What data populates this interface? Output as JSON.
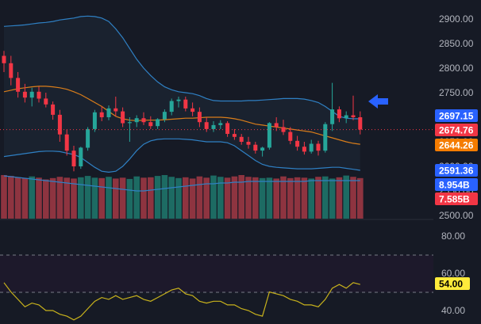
{
  "chart_data": {
    "type": "candlestick",
    "price_axis": {
      "range": [
        2500,
        2920
      ],
      "ticks": [
        "2900.00",
        "2850.00",
        "2800.00",
        "2750.00",
        "2700.00",
        "2650.00",
        "2600.00",
        "2550.00",
        "2500.00"
      ]
    },
    "rsi_axis": {
      "range": [
        36,
        82
      ],
      "ticks": [
        "80.00",
        "60.00",
        "40.00"
      ],
      "bands": [
        70,
        50
      ]
    },
    "candles": [
      [
        2825,
        2835,
        2792,
        2810
      ],
      [
        2810,
        2825,
        2765,
        2780
      ],
      [
        2780,
        2792,
        2740,
        2752
      ],
      [
        2752,
        2768,
        2730,
        2740
      ],
      [
        2740,
        2760,
        2722,
        2752
      ],
      [
        2752,
        2762,
        2730,
        2738
      ],
      [
        2738,
        2750,
        2720,
        2726
      ],
      [
        2726,
        2732,
        2695,
        2705
      ],
      [
        2705,
        2715,
        2650,
        2665
      ],
      [
        2665,
        2675,
        2622,
        2632
      ],
      [
        2632,
        2642,
        2590,
        2600
      ],
      [
        2600,
        2640,
        2595,
        2638
      ],
      [
        2638,
        2680,
        2632,
        2676
      ],
      [
        2676,
        2715,
        2670,
        2710
      ],
      [
        2710,
        2722,
        2692,
        2700
      ],
      [
        2700,
        2724,
        2694,
        2718
      ],
      [
        2718,
        2742,
        2702,
        2712
      ],
      [
        2712,
        2720,
        2680,
        2688
      ],
      [
        2688,
        2700,
        2650,
        2690
      ],
      [
        2690,
        2704,
        2680,
        2698
      ],
      [
        2698,
        2710,
        2684,
        2690
      ],
      [
        2690,
        2702,
        2676,
        2682
      ],
      [
        2682,
        2698,
        2676,
        2696
      ],
      [
        2696,
        2716,
        2690,
        2711
      ],
      [
        2711,
        2738,
        2704,
        2733
      ],
      [
        2733,
        2742,
        2720,
        2736
      ],
      [
        2736,
        2742,
        2712,
        2718
      ],
      [
        2718,
        2730,
        2702,
        2711
      ],
      [
        2711,
        2720,
        2680,
        2690
      ],
      [
        2690,
        2700,
        2670,
        2676
      ],
      [
        2676,
        2692,
        2670,
        2684
      ],
      [
        2684,
        2694,
        2676,
        2688
      ],
      [
        2688,
        2692,
        2660,
        2666
      ],
      [
        2666,
        2676,
        2654,
        2660
      ],
      [
        2660,
        2666,
        2644,
        2650
      ],
      [
        2650,
        2660,
        2636,
        2644
      ],
      [
        2644,
        2650,
        2626,
        2632
      ],
      [
        2632,
        2640,
        2620,
        2638
      ],
      [
        2638,
        2690,
        2634,
        2688
      ],
      [
        2688,
        2700,
        2672,
        2680
      ],
      [
        2680,
        2695,
        2664,
        2670
      ],
      [
        2670,
        2680,
        2645,
        2652
      ],
      [
        2652,
        2662,
        2632,
        2640
      ],
      [
        2640,
        2650,
        2624,
        2630
      ],
      [
        2630,
        2654,
        2626,
        2646
      ],
      [
        2646,
        2652,
        2622,
        2632
      ],
      [
        2632,
        2690,
        2628,
        2686
      ],
      [
        2686,
        2770,
        2672,
        2716
      ],
      [
        2716,
        2722,
        2690,
        2698
      ],
      [
        2698,
        2712,
        2688,
        2704
      ],
      [
        2704,
        2744,
        2694,
        2700
      ],
      [
        2700,
        2712,
        2665,
        2675
      ]
    ],
    "volume_colors": "colored by candle direction",
    "bollinger_upper": [
      2885,
      2886,
      2887,
      2888,
      2890,
      2892,
      2893,
      2895,
      2898,
      2900,
      2902,
      2905,
      2906,
      2905,
      2902,
      2895,
      2880,
      2862,
      2840,
      2818,
      2800,
      2785,
      2772,
      2762,
      2756,
      2752,
      2750,
      2748,
      2744,
      2738,
      2734,
      2733,
      2733,
      2733,
      2733,
      2734,
      2734,
      2735,
      2736,
      2737,
      2738,
      2738,
      2738,
      2737,
      2734,
      2730,
      2722,
      2712,
      2702,
      2698,
      2697,
      2697
    ],
    "bollinger_middle": [
      2752,
      2755,
      2758,
      2760,
      2762,
      2763,
      2763,
      2762,
      2760,
      2757,
      2752,
      2746,
      2738,
      2730,
      2722,
      2712,
      2702,
      2697,
      2694,
      2693,
      2694,
      2694,
      2694,
      2695,
      2696,
      2697,
      2698,
      2698,
      2699,
      2700,
      2700,
      2700,
      2699,
      2697,
      2694,
      2690,
      2686,
      2684,
      2682,
      2680,
      2678,
      2676,
      2674,
      2672,
      2670,
      2666,
      2662,
      2658,
      2654,
      2650,
      2647,
      2645
    ],
    "bollinger_lower": [
      2620,
      2622,
      2624,
      2626,
      2628,
      2630,
      2631,
      2631,
      2630,
      2627,
      2624,
      2618,
      2608,
      2598,
      2590,
      2588,
      2590,
      2600,
      2615,
      2632,
      2645,
      2652,
      2655,
      2656,
      2656,
      2656,
      2655,
      2654,
      2652,
      2650,
      2650,
      2650,
      2648,
      2642,
      2632,
      2622,
      2612,
      2604,
      2600,
      2598,
      2597,
      2596,
      2595,
      2595,
      2595,
      2596,
      2597,
      2598,
      2598,
      2596,
      2594,
      2592
    ],
    "volume_ma": [
      0.05,
      0.06,
      0.07,
      0.08,
      0.09,
      0.1,
      0.11,
      0.12,
      0.14,
      0.16,
      0.18,
      0.2,
      0.22,
      0.24,
      0.26,
      0.28,
      0.3,
      0.32,
      0.34,
      0.35,
      0.36,
      0.38,
      0.4,
      0.42,
      0.44,
      0.46,
      0.48,
      0.5,
      0.52,
      0.55,
      0.58,
      0.6,
      0.62,
      0.64,
      0.66,
      0.68,
      0.7,
      0.72,
      0.74,
      0.75,
      0.76,
      0.78,
      0.8,
      0.81,
      0.82,
      0.83,
      0.84,
      0.85,
      0.85,
      0.85,
      0.85,
      0.85
    ],
    "volumes": [
      1.0,
      0.98,
      0.95,
      0.93,
      0.97,
      0.94,
      0.9,
      0.93,
      0.96,
      0.94,
      0.92,
      0.95,
      0.98,
      0.94,
      0.93,
      0.96,
      0.92,
      0.94,
      0.91,
      0.97,
      0.94,
      0.95,
      0.98,
      1.0,
      0.96,
      0.93,
      0.95,
      0.92,
      0.97,
      0.94,
      0.99,
      0.96,
      0.94,
      0.97,
      1.0,
      0.96,
      0.95,
      0.93,
      0.94,
      0.92,
      0.97,
      0.93,
      0.95,
      0.94,
      0.92,
      0.96,
      0.97,
      0.92,
      0.95,
      0.99,
      0.96,
      0.93
    ],
    "rsi": [
      55,
      50,
      46,
      42,
      44,
      43,
      40,
      40,
      38,
      37,
      35,
      37,
      41,
      45,
      47,
      46,
      48,
      46,
      47,
      48,
      46,
      45,
      47,
      49,
      51,
      52,
      49,
      48,
      45,
      44,
      45,
      45,
      43,
      43,
      41,
      40,
      38,
      37,
      50,
      49,
      48,
      46,
      45,
      43,
      43,
      42,
      46,
      52,
      54,
      52,
      55,
      54
    ],
    "price_badges": [
      {
        "label": "2697.15",
        "value": 2697.15,
        "color": "#2962ff"
      },
      {
        "label": "2674.76",
        "value": 2674.76,
        "color": "#f23645"
      },
      {
        "label": "2644.26",
        "value": 2644.26,
        "color": "#f57c00"
      }
    ],
    "volume_badges": [
      {
        "label": "2591.36",
        "color": "#2962ff"
      },
      {
        "label": "8.954B",
        "color": "#2962ff"
      },
      {
        "label": "7.585B",
        "color": "#f23645"
      }
    ],
    "rsi_badge": {
      "label": "54.00",
      "color": "#ffeb3b"
    },
    "colors": {
      "up": "#26a69a",
      "down": "#f23645",
      "volume_up": "#1d6b63",
      "volume_down": "#8e3440",
      "bollinger_upper": "#2f80c4",
      "bollinger_middle": "#d97d1a",
      "bollinger_lower": "#2f80c4",
      "volume_ma": "#2f80c4",
      "rsi": "#c8b21c",
      "arrow": "#2962ff"
    }
  }
}
